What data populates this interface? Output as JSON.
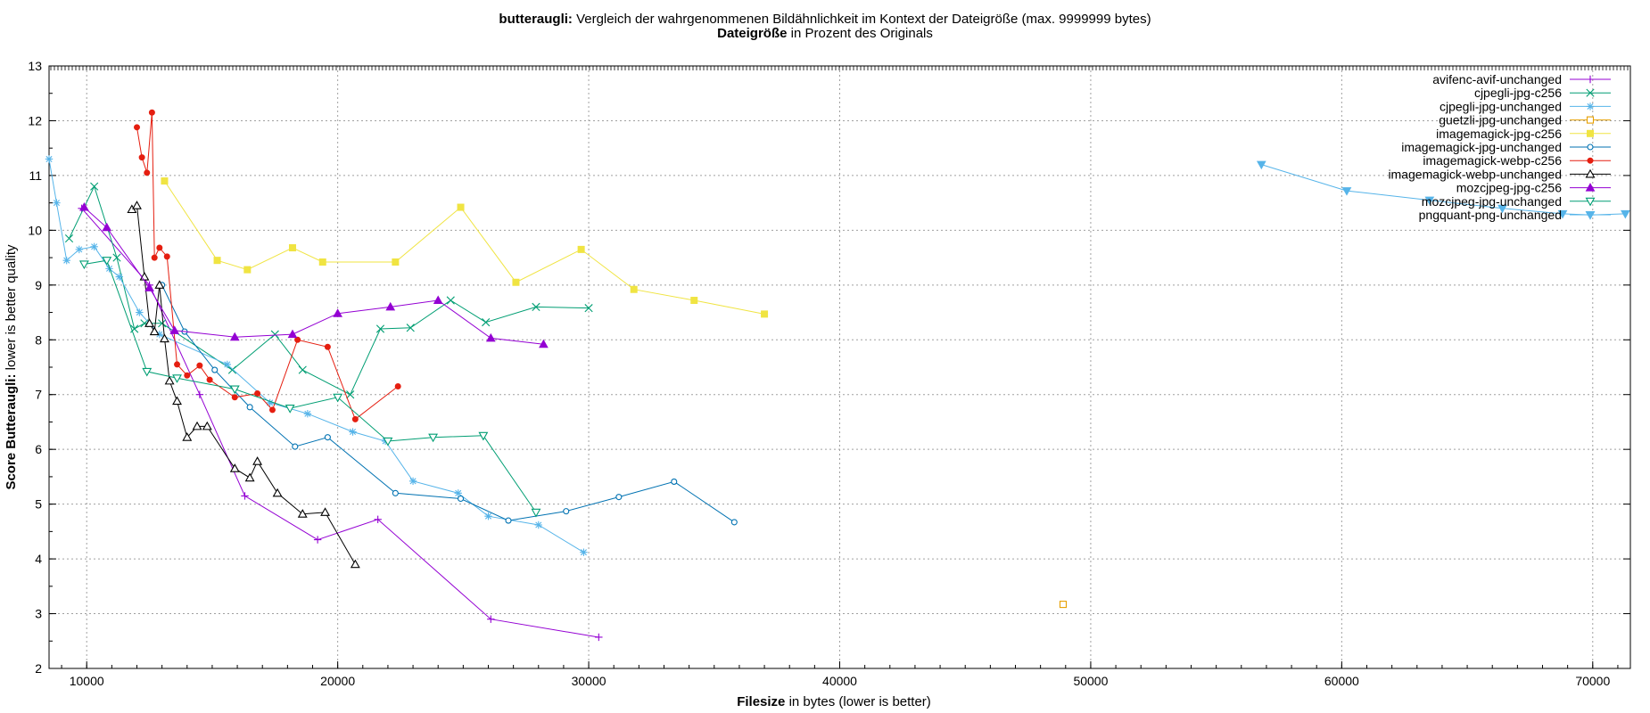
{
  "chart_data": {
    "type": "line",
    "title_bold": "butteraugli:",
    "title_rest": " Vergleich der wahrgenommenen Bildähnlichkeit im Kontext der Dateigröße (max. 9999999 bytes)",
    "subtitle_bold": "Dateigröße",
    "subtitle_rest": " in Prozent des Originals",
    "xlabel_bold": "Filesize",
    "xlabel_rest": " in bytes (lower is better)",
    "ylabel_bold": "Score Butteraugli:",
    "ylabel_rest": " lower is better quality",
    "xlim": [
      8500,
      71500
    ],
    "ylim": [
      2,
      13
    ],
    "xticks": [
      10000,
      20000,
      30000,
      40000,
      50000,
      60000,
      70000
    ],
    "yticks": [
      2,
      3,
      4,
      5,
      6,
      7,
      8,
      9,
      10,
      11,
      12,
      13
    ],
    "grid": true,
    "legend_position": "top-right",
    "top_axis_note": "top axis tick labels (percent of original) are overlapping and illegible",
    "series": [
      {
        "name": "avifenc-avif-unchanged",
        "color": "#9400d3",
        "marker": "plus",
        "points": [
          [
            9800,
            10.4
          ],
          [
            12500,
            9.0
          ],
          [
            14500,
            7.0
          ],
          [
            16300,
            5.15
          ],
          [
            19200,
            4.35
          ],
          [
            21600,
            4.72
          ],
          [
            26100,
            2.9
          ],
          [
            30400,
            2.57
          ]
        ]
      },
      {
        "name": "cjpegli-jpg-c256",
        "color": "#009e73",
        "marker": "x",
        "points": [
          [
            9300,
            9.85
          ],
          [
            10300,
            10.8
          ],
          [
            11200,
            9.5
          ],
          [
            11900,
            8.2
          ],
          [
            12300,
            8.3
          ],
          [
            13000,
            8.3
          ],
          [
            15800,
            7.45
          ],
          [
            17500,
            8.1
          ],
          [
            18600,
            7.45
          ],
          [
            20500,
            7.0
          ],
          [
            21700,
            8.2
          ],
          [
            22900,
            8.22
          ],
          [
            24500,
            8.72
          ],
          [
            25900,
            8.32
          ],
          [
            27900,
            8.6
          ],
          [
            30000,
            8.58
          ]
        ]
      },
      {
        "name": "cjpegli-jpg-unchanged",
        "color": "#56b4e9",
        "marker": "asterisk",
        "points": [
          [
            8500,
            11.3
          ],
          [
            8800,
            10.5
          ],
          [
            9200,
            9.45
          ],
          [
            9700,
            9.65
          ],
          [
            10300,
            9.7
          ],
          [
            10900,
            9.3
          ],
          [
            11300,
            9.15
          ],
          [
            12100,
            8.5
          ],
          [
            12900,
            8.1
          ],
          [
            15600,
            7.55
          ],
          [
            17300,
            6.85
          ],
          [
            18800,
            6.65
          ],
          [
            20600,
            6.32
          ],
          [
            21900,
            6.15
          ],
          [
            23000,
            5.42
          ],
          [
            24800,
            5.2
          ],
          [
            26000,
            4.78
          ],
          [
            28000,
            4.62
          ],
          [
            29800,
            4.12
          ]
        ]
      },
      {
        "name": "guetzli-jpg-unchanged",
        "color": "#e69f00",
        "marker": "square-open",
        "points": [
          [
            48900,
            3.17
          ]
        ]
      },
      {
        "name": "imagemagick-jpg-c256",
        "color": "#f0e442",
        "marker": "square-filled",
        "points": [
          [
            13100,
            10.9
          ],
          [
            15200,
            9.45
          ],
          [
            16400,
            9.28
          ],
          [
            18200,
            9.68
          ],
          [
            19400,
            9.42
          ],
          [
            22300,
            9.42
          ],
          [
            24900,
            10.42
          ],
          [
            27100,
            9.05
          ],
          [
            29700,
            9.65
          ],
          [
            31800,
            8.92
          ],
          [
            34200,
            8.72
          ],
          [
            37000,
            8.47
          ]
        ]
      },
      {
        "name": "imagemagick-jpg-unchanged",
        "color": "#0072b2",
        "marker": "circle-open",
        "points": [
          [
            13000,
            9.0
          ],
          [
            13900,
            8.15
          ],
          [
            15100,
            7.45
          ],
          [
            16500,
            6.77
          ],
          [
            18300,
            6.05
          ],
          [
            19600,
            6.22
          ],
          [
            22300,
            5.2
          ],
          [
            24900,
            5.1
          ],
          [
            26800,
            4.7
          ],
          [
            29100,
            4.87
          ],
          [
            31200,
            5.13
          ],
          [
            33400,
            5.41
          ],
          [
            35800,
            4.67
          ]
        ]
      },
      {
        "name": "imagemagick-webp-c256",
        "color": "#e51e10",
        "marker": "circle-filled",
        "points": [
          [
            12000,
            11.88
          ],
          [
            12200,
            11.33
          ],
          [
            12400,
            11.05
          ],
          [
            12600,
            12.15
          ],
          [
            12700,
            9.5
          ],
          [
            12900,
            9.68
          ],
          [
            13200,
            9.52
          ],
          [
            13600,
            7.55
          ],
          [
            14000,
            7.35
          ],
          [
            14500,
            7.53
          ],
          [
            14900,
            7.27
          ],
          [
            15900,
            6.95
          ],
          [
            16800,
            7.02
          ],
          [
            17400,
            6.72
          ],
          [
            18400,
            8.0
          ],
          [
            19600,
            7.87
          ],
          [
            20700,
            6.55
          ],
          [
            22400,
            7.15
          ]
        ]
      },
      {
        "name": "imagemagick-webp-unchanged",
        "color": "#000000",
        "marker": "triangle-open",
        "points": [
          [
            11800,
            10.38
          ],
          [
            12000,
            10.45
          ],
          [
            12300,
            9.15
          ],
          [
            12500,
            8.3
          ],
          [
            12700,
            8.15
          ],
          [
            12900,
            9.0
          ],
          [
            13100,
            8.02
          ],
          [
            13300,
            7.25
          ],
          [
            13600,
            6.88
          ],
          [
            14000,
            6.22
          ],
          [
            14400,
            6.42
          ],
          [
            14800,
            6.42
          ],
          [
            15900,
            5.65
          ],
          [
            16500,
            5.48
          ],
          [
            16800,
            5.78
          ],
          [
            17600,
            5.2
          ],
          [
            18600,
            4.82
          ],
          [
            19500,
            4.85
          ],
          [
            20700,
            3.9
          ]
        ]
      },
      {
        "name": "mozcjpeg-jpg-c256",
        "color": "#9400d3",
        "marker": "triangle-filled",
        "points": [
          [
            9900,
            10.42
          ],
          [
            10800,
            10.05
          ],
          [
            12500,
            8.95
          ],
          [
            13500,
            8.17
          ],
          [
            15900,
            8.05
          ],
          [
            18200,
            8.1
          ],
          [
            20000,
            8.48
          ],
          [
            22100,
            8.6
          ],
          [
            24000,
            8.72
          ],
          [
            26100,
            8.03
          ],
          [
            28200,
            7.92
          ]
        ]
      },
      {
        "name": "mozcjpeg-jpg-unchanged",
        "color": "#009e73",
        "marker": "triangle-down-open",
        "points": [
          [
            9900,
            9.38
          ],
          [
            10800,
            9.45
          ],
          [
            12400,
            7.42
          ],
          [
            13600,
            7.3
          ],
          [
            15900,
            7.1
          ],
          [
            18100,
            6.75
          ],
          [
            20000,
            6.95
          ],
          [
            22000,
            6.15
          ],
          [
            23800,
            6.22
          ],
          [
            25800,
            6.25
          ],
          [
            27900,
            4.85
          ]
        ]
      },
      {
        "name": "pngquant-png-unchanged",
        "color": "#56b4e9",
        "marker": "triangle-down-filled",
        "points": [
          [
            56800,
            11.2
          ],
          [
            60200,
            10.72
          ],
          [
            63500,
            10.55
          ],
          [
            66400,
            10.4
          ],
          [
            68800,
            10.3
          ],
          [
            69900,
            10.28
          ],
          [
            71300,
            10.3
          ]
        ]
      }
    ]
  }
}
